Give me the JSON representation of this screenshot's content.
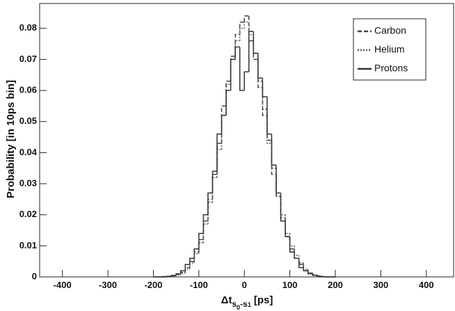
{
  "chart_data": {
    "type": "histogram",
    "y_label": "Probability [in 10ps bin]",
    "x_label_parts": [
      "Δt",
      "s",
      "0",
      "-s",
      "1",
      "[ps]"
    ],
    "bins": [
      -200,
      -190,
      -180,
      -170,
      -160,
      -150,
      -140,
      -130,
      -120,
      -110,
      -100,
      -90,
      -80,
      -70,
      -60,
      -50,
      -40,
      -30,
      -20,
      -10,
      0,
      10,
      20,
      30,
      40,
      50,
      60,
      70,
      80,
      90,
      100,
      110,
      120,
      130,
      140,
      150,
      160,
      170,
      180,
      190,
      200
    ],
    "series": [
      {
        "name": "Carbon",
        "color": "#444444",
        "dash": "6,3",
        "values": [
          0,
          0,
          0.0001,
          0.0002,
          0.0004,
          0.0008,
          0.0015,
          0.003,
          0.005,
          0.008,
          0.012,
          0.018,
          0.025,
          0.033,
          0.043,
          0.055,
          0.063,
          0.071,
          0.078,
          0.082,
          0.084,
          0.076,
          0.07,
          0.061,
          0.052,
          0.044,
          0.033,
          0.026,
          0.019,
          0.013,
          0.009,
          0.006,
          0.004,
          0.002,
          0.0012,
          0.0006,
          0.0003,
          0.0001,
          0,
          0
        ]
      },
      {
        "name": "Helium",
        "color": "#555555",
        "dash": "2,2",
        "values": [
          0,
          0,
          0,
          0.0001,
          0.0003,
          0.0006,
          0.0012,
          0.0025,
          0.0045,
          0.0075,
          0.011,
          0.017,
          0.024,
          0.032,
          0.041,
          0.052,
          0.062,
          0.07,
          0.076,
          0.08,
          0.082,
          0.078,
          0.072,
          0.063,
          0.054,
          0.043,
          0.035,
          0.026,
          0.02,
          0.014,
          0.01,
          0.007,
          0.0045,
          0.0025,
          0.0014,
          0.0007,
          0.0003,
          0.0001,
          0,
          0
        ]
      },
      {
        "name": "Protons",
        "color": "#333333",
        "dash": "none",
        "values": [
          0,
          0,
          0,
          0.0002,
          0.0005,
          0.001,
          0.002,
          0.004,
          0.006,
          0.009,
          0.014,
          0.02,
          0.027,
          0.034,
          0.046,
          0.052,
          0.06,
          0.07,
          0.074,
          0.06,
          0.066,
          0.079,
          0.072,
          0.064,
          0.058,
          0.046,
          0.036,
          0.027,
          0.018,
          0.013,
          0.008,
          0.006,
          0.003,
          0.002,
          0.001,
          0.0005,
          0.0002,
          0,
          0,
          0
        ]
      }
    ],
    "xlim": [
      -450,
      460
    ],
    "ylim": [
      0,
      0.088
    ],
    "xticks": [
      -400,
      -300,
      -200,
      -100,
      0,
      100,
      200,
      300,
      400
    ],
    "yticks": [
      0,
      0.01,
      0.02,
      0.03,
      0.04,
      0.05,
      0.06,
      0.07,
      0.08
    ],
    "legend": "top-right"
  }
}
